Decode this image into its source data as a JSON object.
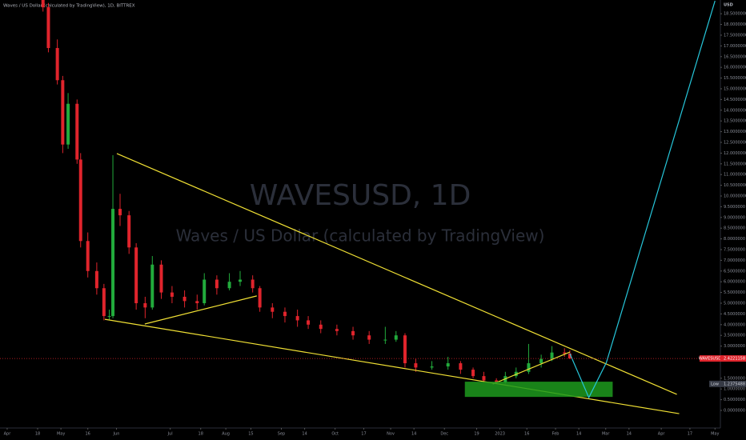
{
  "header": {
    "title": "Waves / US Dollar (calculated by TradingView), 1D, BITTREX"
  },
  "chart_data": {
    "type": "candlestick",
    "watermark": {
      "symbol": "WAVESUSD, 1D",
      "description": "Waves / US Dollar (calculated by TradingView)"
    },
    "y_unit": "USD",
    "up_color": "#22ab3c",
    "down_color": "#e0242c",
    "x": [
      20,
      23,
      28,
      31,
      34,
      39,
      41,
      45,
      50,
      54,
      57,
      59,
      63,
      68,
      72,
      77,
      81,
      86,
      92,
      99,
      106,
      110,
      117,
      124,
      130,
      137,
      141,
      148,
      155,
      162,
      168,
      175,
      184,
      193,
      202,
      211,
      217,
      222,
      228,
      237,
      246,
      253,
      260,
      266,
      273,
      278,
      284,
      291,
      298,
      304,
      311,
      314
    ],
    "open": [
      19.5,
      18.8,
      16.9,
      15.4,
      12.4,
      14.3,
      11.7,
      7.9,
      6.5,
      5.7,
      4.4,
      4.4,
      9.4,
      9.1,
      7.6,
      5.0,
      4.8,
      6.8,
      5.5,
      5.3,
      5.1,
      5.0,
      6.1,
      5.7,
      6.0,
      6.1,
      5.7,
      4.8,
      4.6,
      4.4,
      4.2,
      4.0,
      3.8,
      3.7,
      3.5,
      3.3,
      3.3,
      3.5,
      2.2,
      2.0,
      2.05,
      2.2,
      1.9,
      1.6,
      1.4,
      1.3,
      1.6,
      1.8,
      2.2,
      2.4,
      2.7,
      2.65
    ],
    "high": [
      19.8,
      19.0,
      17.3,
      15.6,
      14.8,
      14.5,
      12.0,
      8.3,
      6.9,
      5.9,
      4.7,
      11.9,
      10.1,
      9.3,
      7.8,
      5.3,
      7.2,
      7.0,
      5.8,
      5.6,
      5.4,
      6.4,
      6.3,
      6.4,
      6.5,
      6.3,
      5.8,
      5.0,
      4.8,
      4.7,
      4.4,
      4.2,
      4.0,
      3.9,
      3.7,
      3.9,
      3.7,
      3.6,
      2.4,
      2.3,
      2.5,
      2.3,
      2.0,
      1.8,
      1.5,
      1.8,
      2.0,
      3.1,
      2.6,
      3.0,
      2.9,
      2.8
    ],
    "low": [
      18.6,
      16.7,
      15.2,
      12.0,
      12.2,
      11.5,
      7.6,
      6.2,
      5.4,
      4.2,
      4.2,
      4.3,
      8.6,
      7.3,
      4.7,
      4.3,
      4.7,
      5.2,
      5.0,
      4.8,
      4.7,
      4.9,
      5.4,
      5.6,
      5.8,
      5.5,
      4.6,
      4.3,
      4.1,
      3.9,
      3.8,
      3.6,
      3.5,
      3.3,
      3.1,
      3.1,
      3.2,
      2.0,
      1.8,
      1.9,
      1.9,
      1.7,
      1.5,
      1.3,
      1.24,
      1.25,
      1.5,
      1.7,
      2.0,
      2.3,
      2.5,
      2.4
    ],
    "close": [
      18.8,
      16.9,
      15.4,
      12.4,
      14.3,
      11.7,
      7.9,
      6.5,
      5.7,
      4.4,
      4.4,
      9.4,
      9.1,
      7.6,
      5.0,
      4.8,
      6.8,
      5.5,
      5.3,
      5.1,
      5.0,
      6.1,
      5.7,
      6.0,
      6.1,
      5.7,
      4.8,
      4.6,
      4.4,
      4.2,
      4.0,
      3.8,
      3.7,
      3.5,
      3.3,
      3.3,
      3.5,
      2.2,
      2.0,
      2.05,
      2.2,
      1.9,
      1.6,
      1.4,
      1.3,
      1.6,
      1.8,
      2.2,
      2.4,
      2.7,
      2.65,
      2.42
    ],
    "xlim": [
      -4,
      398
    ],
    "xticks": [
      {
        "value": 0,
        "label": "Apr"
      },
      {
        "value": 17,
        "label": "18"
      },
      {
        "value": 30,
        "label": "May"
      },
      {
        "value": 45,
        "label": "16"
      },
      {
        "value": 61,
        "label": "Jun"
      },
      {
        "value": 91,
        "label": "Jul"
      },
      {
        "value": 108,
        "label": "18"
      },
      {
        "value": 122,
        "label": "Aug"
      },
      {
        "value": 136,
        "label": "15"
      },
      {
        "value": 153,
        "label": "Sep"
      },
      {
        "value": 166,
        "label": "14"
      },
      {
        "value": 183,
        "label": "Oct"
      },
      {
        "value": 199,
        "label": "17"
      },
      {
        "value": 214,
        "label": "Nov"
      },
      {
        "value": 227,
        "label": "14"
      },
      {
        "value": 244,
        "label": "Dec"
      },
      {
        "value": 262,
        "label": "19"
      },
      {
        "value": 275,
        "label": "2023"
      },
      {
        "value": 290,
        "label": "16"
      },
      {
        "value": 306,
        "label": "Feb"
      },
      {
        "value": 319,
        "label": "14"
      },
      {
        "value": 334,
        "label": "Mar"
      },
      {
        "value": 347,
        "label": "14"
      },
      {
        "value": 365,
        "label": "Apr"
      },
      {
        "value": 381,
        "label": "17"
      },
      {
        "value": 395,
        "label": "May"
      }
    ],
    "ylim": [
      -0.82,
      19.14
    ],
    "yticks": [
      {
        "value": 0,
        "label": "0.0000000"
      },
      {
        "value": 0.5,
        "label": "0.5000000"
      },
      {
        "value": 1,
        "label": "1.0000000"
      },
      {
        "value": 1.5,
        "label": "1.5000000"
      },
      {
        "value": 3,
        "label": "3.0000000"
      },
      {
        "value": 3.5,
        "label": "3.5000000"
      },
      {
        "value": 4,
        "label": "4.0000000"
      },
      {
        "value": 4.5,
        "label": "4.5000000"
      },
      {
        "value": 5,
        "label": "5.0000000"
      },
      {
        "value": 5.5,
        "label": "5.5000000"
      },
      {
        "value": 6,
        "label": "6.0000000"
      },
      {
        "value": 6.5,
        "label": "6.5000000"
      },
      {
        "value": 7,
        "label": "7.0000000"
      },
      {
        "value": 7.5,
        "label": "7.5000000"
      },
      {
        "value": 8,
        "label": "8.0000000"
      },
      {
        "value": 8.5,
        "label": "8.5000000"
      },
      {
        "value": 9,
        "label": "9.0000000"
      },
      {
        "value": 9.5,
        "label": "9.5000000"
      },
      {
        "value": 10,
        "label": "10.0000000"
      },
      {
        "value": 10.5,
        "label": "10.5000000"
      },
      {
        "value": 11,
        "label": "11.0000000"
      },
      {
        "value": 11.5,
        "label": "11.5000000"
      },
      {
        "value": 12,
        "label": "12.0000000"
      },
      {
        "value": 12.5,
        "label": "12.5000000"
      },
      {
        "value": 13,
        "label": "13.0000000"
      },
      {
        "value": 13.5,
        "label": "13.5000000"
      },
      {
        "value": 14,
        "label": "14.0000000"
      },
      {
        "value": 14.5,
        "label": "14.5000000"
      },
      {
        "value": 15,
        "label": "15.0000000"
      },
      {
        "value": 15.5,
        "label": "15.5000000"
      },
      {
        "value": 16,
        "label": "16.0000000"
      },
      {
        "value": 16.5,
        "label": "16.5000000"
      },
      {
        "value": 17,
        "label": "17.0000000"
      },
      {
        "value": 17.5,
        "label": "17.5000000"
      },
      {
        "value": 18,
        "label": "18.0000000"
      },
      {
        "value": 18.5,
        "label": "18.5000000"
      }
    ],
    "last_price": {
      "name": "WAVESUSD",
      "value": 2.4221158,
      "color": "#e0242c"
    },
    "low_marker": {
      "name": "Low",
      "value": 1.2375488
    },
    "drawings": [
      {
        "shape": "line",
        "color": "#f0e034",
        "points": [
          [
            61.2,
            11.98
          ],
          [
            373.7,
            0.75
          ]
        ]
      },
      {
        "shape": "line",
        "color": "#f0e034",
        "points": [
          [
            54.5,
            4.25
          ],
          [
            375,
            -0.15
          ]
        ]
      },
      {
        "shape": "line",
        "color": "#f0e034",
        "points": [
          [
            76.8,
            4.03
          ],
          [
            139.3,
            5.34
          ]
        ]
      },
      {
        "shape": "line",
        "color": "#f0e034",
        "points": [
          [
            271,
            1.23
          ],
          [
            314,
            2.72
          ]
        ]
      },
      {
        "shape": "rect",
        "color": "#1d9a1d",
        "points": [
          [
            255.4,
            1.34
          ],
          [
            337.9,
            0.63
          ]
        ]
      },
      {
        "shape": "line",
        "color": "#26c6da",
        "points": [
          [
            314,
            2.65
          ],
          [
            324.6,
            0.6
          ],
          [
            334.4,
            2.24
          ],
          [
            395,
            19.1
          ]
        ]
      }
    ]
  }
}
